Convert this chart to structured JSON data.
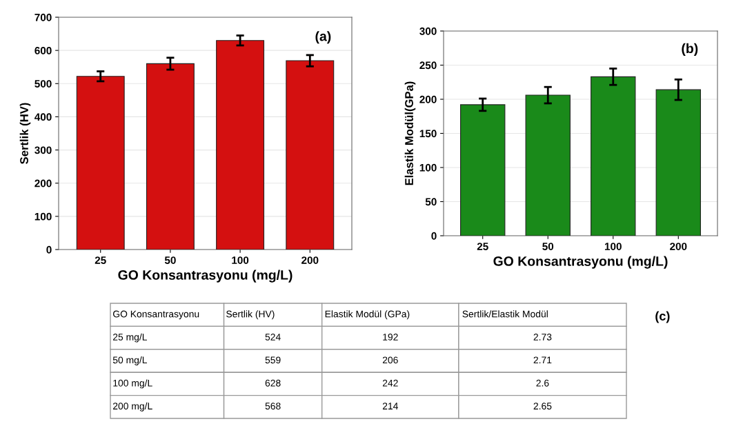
{
  "chart_data": [
    {
      "type": "bar",
      "title": "(a)",
      "xlabel": "GO Konsantrasyonu (mg/L)",
      "ylabel": "Sertlik (HV)",
      "categories": [
        "25",
        "50",
        "100",
        "200"
      ],
      "values": [
        522,
        560,
        630,
        569
      ],
      "errors": [
        15,
        18,
        15,
        17
      ],
      "color": "#d41010",
      "ylim": [
        0,
        700
      ],
      "yticks": [
        0,
        100,
        200,
        300,
        400,
        500,
        600,
        700
      ],
      "grid": "y"
    },
    {
      "type": "bar",
      "title": "(b)",
      "xlabel": "GO Konsantrasyonu (mg/L)",
      "ylabel": "Elastik Modül(GPa)",
      "categories": [
        "25",
        "50",
        "100",
        "200"
      ],
      "values": [
        192,
        206,
        233,
        214
      ],
      "errors": [
        9,
        12,
        12,
        15
      ],
      "color": "#1a8a1a",
      "ylim": [
        0,
        300
      ],
      "yticks": [
        0,
        50,
        100,
        150,
        200,
        250,
        300
      ],
      "grid": "y"
    },
    {
      "type": "other",
      "title": "(c)",
      "categories": [
        "GO Konsantrasyonu",
        "Sertlik (HV)",
        "Elastik Modül (GPa)",
        "Sertlik/Elastik Modül"
      ],
      "annotations": [
        "25 mg/L",
        "524",
        "192",
        "2.73",
        "50 mg/L",
        "559",
        "206",
        "2.71",
        "100 mg/L",
        "628",
        "242",
        "2.6",
        "200 mg/L",
        "568",
        "214",
        "2.65"
      ]
    }
  ]
}
